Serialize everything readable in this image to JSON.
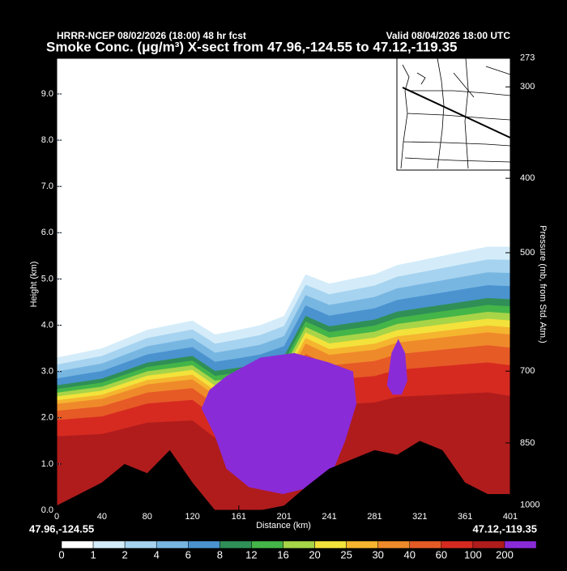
{
  "chart_data": {
    "type": "contour",
    "header_left": "HRRR-NCEP 08/02/2026 (18:00) 48 hr fcst",
    "header_right": "Valid 08/04/2026 18:00 UTC",
    "title": "Smoke Conc. (μg/m³) X-sect from 47.96,-124.55 to 47.12,-119.35",
    "x_label": "Distance (km)",
    "y_label": "Height (km)",
    "y2_label": "Pressure (mb, from Std. Atm.)",
    "start_label": "47.96,-124.55",
    "end_label": "47.12,-119.35",
    "xlim": [
      0,
      401
    ],
    "xticks": [
      0,
      40,
      80,
      120,
      161,
      201,
      241,
      281,
      321,
      361,
      401
    ],
    "ylim": [
      0,
      9.77
    ],
    "yticks": [
      {
        "value": 0,
        "label": "0.0"
      },
      {
        "value": 1,
        "label": "1.0"
      },
      {
        "value": 2,
        "label": "2.0"
      },
      {
        "value": 3,
        "label": "3.0"
      },
      {
        "value": 4,
        "label": "4.0"
      },
      {
        "value": 5,
        "label": "5.0"
      },
      {
        "value": 6,
        "label": "6.0"
      },
      {
        "value": 7,
        "label": "7.0"
      },
      {
        "value": 8,
        "label": "8.0"
      },
      {
        "value": 9,
        "label": "9.0"
      }
    ],
    "y2ticks": [
      273,
      300,
      400,
      500,
      700,
      850,
      1000
    ],
    "colorbar": {
      "levels": [
        0,
        1,
        2,
        4,
        6,
        8,
        12,
        16,
        20,
        25,
        30,
        40,
        60,
        100,
        200
      ],
      "colors": [
        "#ffffff",
        "#d4ecf9",
        "#a6d3ef",
        "#78b6e2",
        "#4a93cf",
        "#2f8f57",
        "#44b548",
        "#a8d448",
        "#f3e23b",
        "#f5b52f",
        "#ef8a2b",
        "#e65a26",
        "#d62a20",
        "#b01c1c",
        "#8a2bd8"
      ]
    }
  }
}
